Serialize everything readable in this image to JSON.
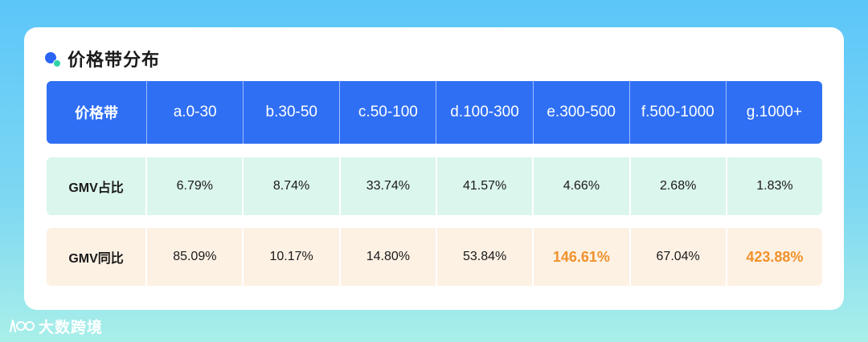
{
  "title": "价格带分布",
  "brand": "大数跨境",
  "colors": {
    "header": "#2f6ff4",
    "share_row": "#dbf6ec",
    "yoy_row": "#fdf1e4",
    "highlight": "#f0922b"
  },
  "chart_data": {
    "type": "table",
    "header_label": "价格带",
    "columns": [
      "a.0-30",
      "b.30-50",
      "c.50-100",
      "d.100-300",
      "e.300-500",
      "f.500-1000",
      "g.1000+"
    ],
    "rows": [
      {
        "label": "GMV占比",
        "values": [
          "6.79%",
          "8.74%",
          "33.74%",
          "41.57%",
          "4.66%",
          "2.68%",
          "1.83%"
        ]
      },
      {
        "label": "GMV同比",
        "values": [
          "85.09%",
          "10.17%",
          "14.80%",
          "53.84%",
          "146.61%",
          "67.04%",
          "423.88%"
        ],
        "highlighted": [
          false,
          false,
          false,
          false,
          true,
          false,
          true
        ]
      }
    ]
  }
}
